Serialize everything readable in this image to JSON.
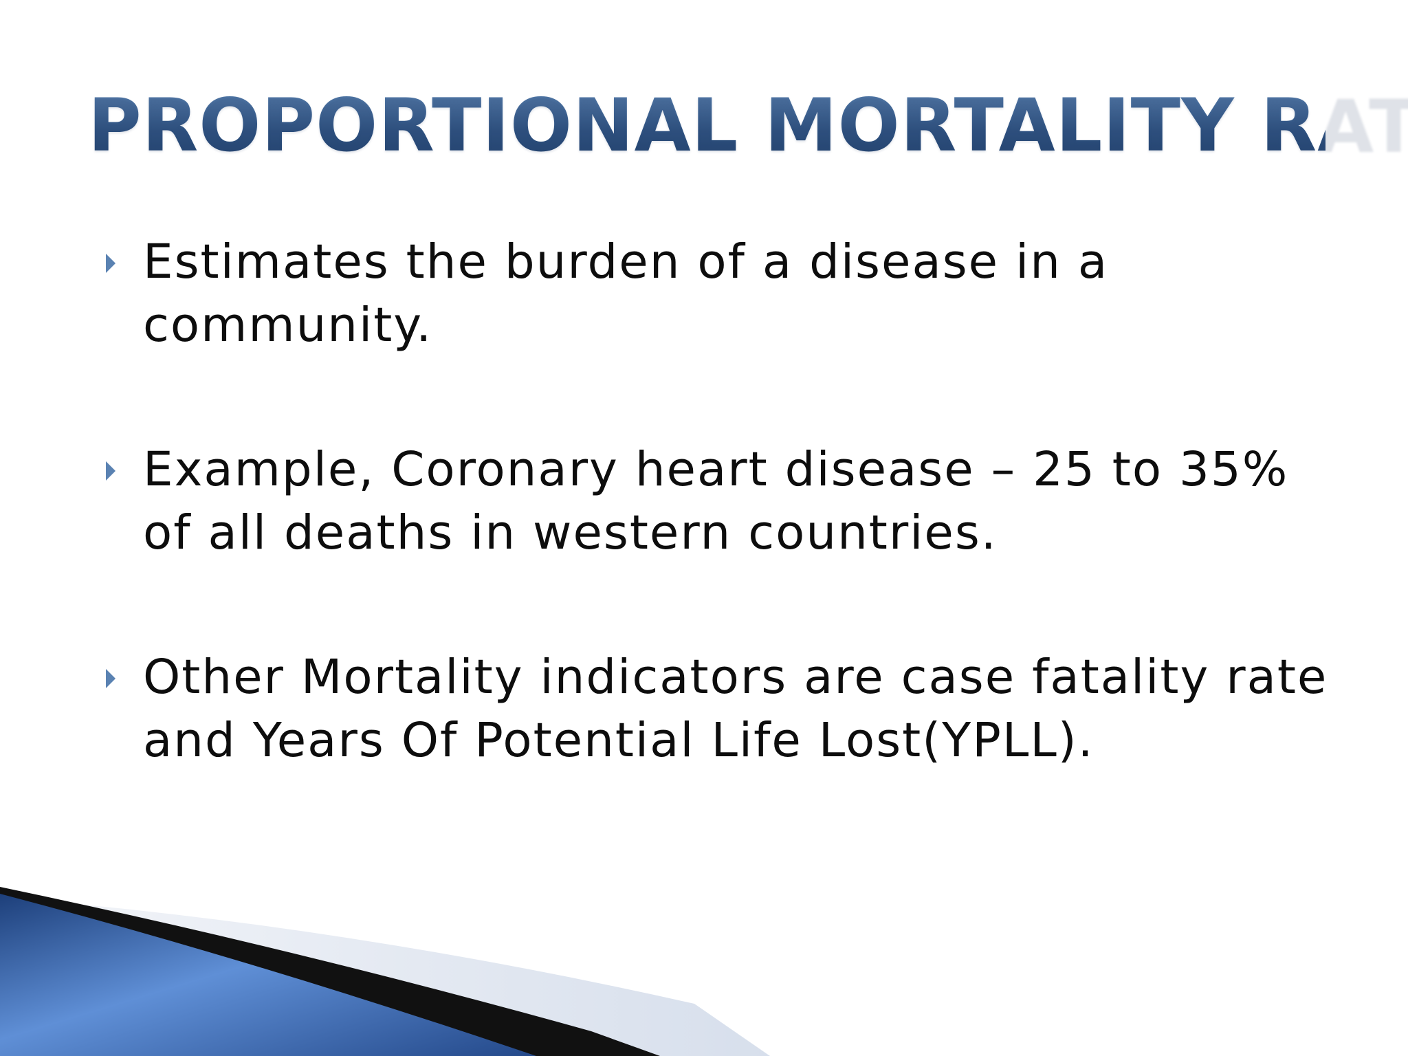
{
  "slide": {
    "title": "PROPORTIONAL MORTALITY RATE",
    "bullets": [
      {
        "text": "Estimates the burden of a disease in a community."
      },
      {
        "text": "Example, Coronary heart disease – 25 to 35% of all deaths in western countries."
      },
      {
        "text": "Other Mortality indicators are case fatality rate and Years Of Potential Life Lost(YPLL)."
      }
    ]
  },
  "colors": {
    "title": "#2f5382",
    "bullet_marker": "#5a82b2",
    "body_text": "#0d0d0d",
    "swoosh_blue": "#3f6fb5",
    "swoosh_dark": "#111111",
    "swoosh_light": "#dde3ee"
  }
}
